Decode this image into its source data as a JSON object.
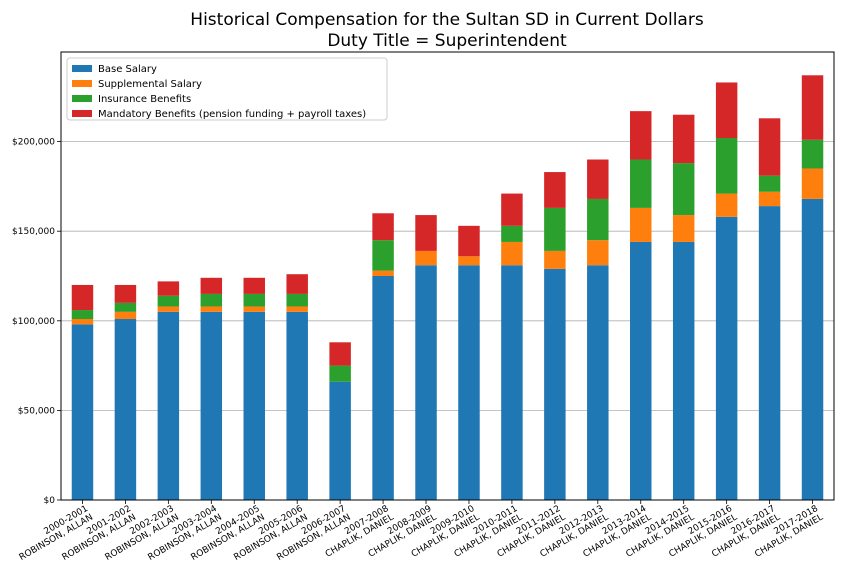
{
  "chart_data": {
    "type": "bar",
    "stacked": true,
    "title": "Historical Compensation for the Sultan SD in Current Dollars",
    "subtitle": "Duty Title = Superintendent",
    "xlabel": "",
    "ylabel": "",
    "ylim": [
      0,
      250000
    ],
    "yticks": [
      0,
      50000,
      100000,
      150000,
      200000
    ],
    "ytick_labels": [
      "$0",
      "$50,000",
      "$100,000",
      "$150,000",
      "$200,000"
    ],
    "grid": "horizontal",
    "legend_position": "top-left",
    "categories": [
      [
        "2000-2001",
        "ROBINSON, ALLAN"
      ],
      [
        "2001-2002",
        "ROBINSON, ALLAN"
      ],
      [
        "2002-2003",
        "ROBINSON, ALLAN"
      ],
      [
        "2003-2004",
        "ROBINSON, ALLAN"
      ],
      [
        "2004-2005",
        "ROBINSON, ALLAN"
      ],
      [
        "2005-2006",
        "ROBINSON, ALLAN"
      ],
      [
        "2006-2007",
        "ROBINSON, ALLAN"
      ],
      [
        "2007-2008",
        "CHAPLIK, DANIEL"
      ],
      [
        "2008-2009",
        "CHAPLIK, DANIEL"
      ],
      [
        "2009-2010",
        "CHAPLIK, DANIEL"
      ],
      [
        "2010-2011",
        "CHAPLIK, DANIEL"
      ],
      [
        "2011-2012",
        "CHAPLIK, DANIEL"
      ],
      [
        "2012-2013",
        "CHAPLIK, DANIEL"
      ],
      [
        "2013-2014",
        "CHAPLIK, DANIEL"
      ],
      [
        "2014-2015",
        "CHAPLIK, DANIEL"
      ],
      [
        "2015-2016",
        "CHAPLIK, DANIEL"
      ],
      [
        "2016-2017",
        "CHAPLIK, DANIEL"
      ],
      [
        "2017-2018",
        "CHAPLIK, DANIEL"
      ]
    ],
    "series": [
      {
        "name": "Base Salary",
        "color": "#1f77b4",
        "values": [
          98000,
          101000,
          105000,
          105000,
          105000,
          105000,
          66000,
          125000,
          131000,
          131000,
          131000,
          129000,
          131000,
          144000,
          144000,
          158000,
          164000,
          168000
        ]
      },
      {
        "name": "Supplemental Salary",
        "color": "#ff7f0e",
        "values": [
          3000,
          4000,
          3000,
          3000,
          3000,
          3000,
          0,
          3000,
          8000,
          5000,
          13000,
          10000,
          14000,
          19000,
          15000,
          13000,
          8000,
          17000
        ]
      },
      {
        "name": "Insurance Benefits",
        "color": "#2ca02c",
        "values": [
          5000,
          5000,
          6000,
          7000,
          7000,
          7000,
          9000,
          17000,
          0,
          0,
          9000,
          24000,
          23000,
          27000,
          29000,
          31000,
          9000,
          16000
        ]
      },
      {
        "name": "Mandatory Benefits (pension funding + payroll taxes)",
        "color": "#d62728",
        "values": [
          14000,
          10000,
          8000,
          9000,
          9000,
          11000,
          13000,
          15000,
          20000,
          17000,
          18000,
          20000,
          22000,
          27000,
          27000,
          31000,
          32000,
          36000
        ]
      }
    ]
  }
}
